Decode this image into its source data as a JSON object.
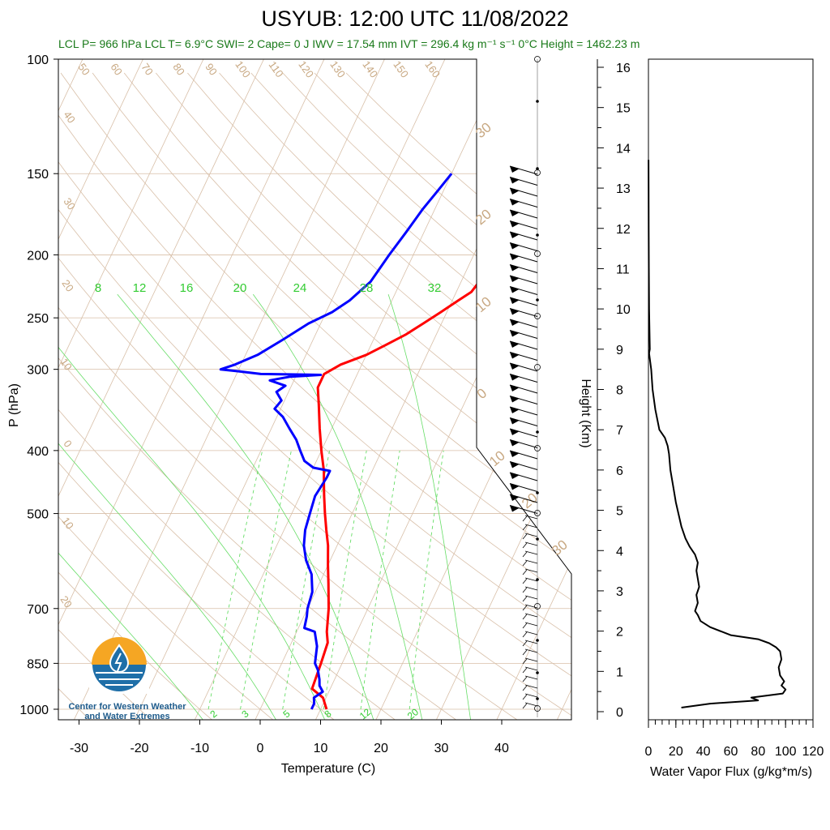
{
  "title": "USYUB: 12:00 UTC 11/08/2022",
  "subtitle": "LCL P= 966 hPa  LCL T= 6.9°C  SWI= 2  Cape= 0 J  IWV = 17.54 mm  IVT = 296.4 kg m⁻¹ s⁻¹  0°C Height = 1462.23 m",
  "logo": {
    "line1": "Center for Western Weather",
    "line2": "and Water Extremes"
  },
  "colors": {
    "temperature": "#ff0000",
    "dewpoint": "#0000ff",
    "isotherm": "#d8bfa8",
    "mixing": "#66dd66",
    "label_tan": "#c8a882",
    "label_green": "#33cc33"
  },
  "chart_data": [
    {
      "type": "line",
      "title": "USYUB: 12:00 UTC 11/08/2022",
      "xlabel": "Temperature (C)",
      "ylabel": "P (hPa)",
      "x_ticks": [
        -30,
        -20,
        -10,
        0,
        10,
        20,
        30,
        40
      ],
      "y_ticks": [
        100,
        150,
        200,
        250,
        300,
        400,
        500,
        700,
        850,
        1000
      ],
      "y_scale": "log",
      "xlim": [
        -33,
        52
      ],
      "ylim": [
        1000,
        100
      ],
      "isotherm_labels": [
        "50",
        "60",
        "70",
        "80",
        "90",
        "100",
        "110",
        "120",
        "130",
        "140",
        "150",
        "160",
        "40",
        "30",
        "20",
        "10",
        "0",
        "10",
        "20"
      ],
      "right_labels": [
        "30",
        "20",
        "10",
        "0",
        "10",
        "20",
        "30"
      ],
      "mixing_labels_top": [
        "8",
        "12",
        "16",
        "20",
        "24",
        "28",
        "32"
      ],
      "mixing_labels_bottom": [
        "2",
        "3",
        "5",
        "8",
        "12",
        "20"
      ],
      "series": [
        {
          "name": "Temperature",
          "color": "#ff0000",
          "points": [
            [
              11,
              1000
            ],
            [
              9.5,
              960
            ],
            [
              7,
              930
            ],
            [
              6.5,
              850
            ],
            [
              6,
              790
            ],
            [
              5,
              760
            ],
            [
              3.5,
              700
            ],
            [
              1.5,
              640
            ],
            [
              0,
              600
            ],
            [
              -1.5,
              560
            ],
            [
              -3,
              530
            ],
            [
              -4.5,
              500
            ],
            [
              -6,
              470
            ],
            [
              -7,
              450
            ],
            [
              -8,
              430
            ],
            [
              -10,
              400
            ],
            [
              -12,
              370
            ],
            [
              -14,
              340
            ],
            [
              -15.5,
              320
            ],
            [
              -15.5,
              305
            ],
            [
              -13.5,
              295
            ],
            [
              -10,
              285
            ],
            [
              -7.5,
              275
            ],
            [
              -5,
              265
            ],
            [
              -3,
              255
            ],
            [
              -1,
              245
            ],
            [
              1,
              235
            ],
            [
              2.5,
              228
            ],
            [
              3,
              220
            ],
            [
              4.5,
              210
            ],
            [
              5,
              200
            ],
            [
              6,
              190
            ],
            [
              7,
              180
            ],
            [
              8,
              170
            ],
            [
              9,
              160
            ],
            [
              10,
              150
            ]
          ]
        },
        {
          "name": "Dewpoint",
          "color": "#0000ff",
          "points": [
            [
              8.5,
              1000
            ],
            [
              8.5,
              980
            ],
            [
              8,
              960
            ],
            [
              9,
              940
            ],
            [
              8,
              920
            ],
            [
              7.5,
              900
            ],
            [
              6.5,
              870
            ],
            [
              5.5,
              850
            ],
            [
              4.5,
              800
            ],
            [
              3,
              760
            ],
            [
              1,
              750
            ],
            [
              0.5,
              720
            ],
            [
              0,
              700
            ],
            [
              -0.5,
              660
            ],
            [
              -2,
              620
            ],
            [
              -4,
              590
            ],
            [
              -5.5,
              560
            ],
            [
              -6.5,
              530
            ],
            [
              -7,
              500
            ],
            [
              -7.5,
              470
            ],
            [
              -7,
              440
            ],
            [
              -7,
              430
            ],
            [
              -10,
              425
            ],
            [
              -12,
              415
            ],
            [
              -13.5,
              400
            ],
            [
              -15,
              385
            ],
            [
              -17,
              370
            ],
            [
              -19,
              355
            ],
            [
              -21,
              345
            ],
            [
              -20.5,
              335
            ],
            [
              -22,
              325
            ],
            [
              -21,
              318
            ],
            [
              -24,
              312
            ],
            [
              -21,
              308
            ],
            [
              -16,
              306
            ],
            [
              -26,
              305
            ],
            [
              -30,
              302
            ],
            [
              -33,
              300
            ],
            [
              -31,
              295
            ],
            [
              -28,
              285
            ],
            [
              -25,
              270
            ],
            [
              -22,
              255
            ],
            [
              -19,
              245
            ],
            [
              -17,
              235
            ],
            [
              -15,
              220
            ],
            [
              -14,
              200
            ],
            [
              -13,
              185
            ],
            [
              -12,
              170
            ],
            [
              -11,
              160
            ],
            [
              -10,
              150
            ]
          ]
        }
      ]
    },
    {
      "type": "line",
      "xlabel": "Water Vapor Flux (g/kg*m/s)",
      "ylabel": "Height (Km)",
      "x_ticks": [
        0,
        20,
        40,
        60,
        80,
        100,
        120
      ],
      "y_ticks": [
        0,
        1,
        2,
        3,
        4,
        5,
        6,
        7,
        8,
        9,
        10,
        11,
        12,
        13,
        14,
        15,
        16
      ],
      "xlim": [
        0,
        120
      ],
      "ylim": [
        0,
        16.3
      ],
      "series": [
        {
          "name": "",
          "color": "#000000",
          "points": [
            [
              24,
              0.1
            ],
            [
              45,
              0.2
            ],
            [
              80,
              0.28
            ],
            [
              75,
              0.35
            ],
            [
              98,
              0.45
            ],
            [
              100,
              0.55
            ],
            [
              97,
              0.65
            ],
            [
              99,
              0.75
            ],
            [
              96,
              0.9
            ],
            [
              95,
              1.1
            ],
            [
              97,
              1.3
            ],
            [
              96,
              1.5
            ],
            [
              93,
              1.6
            ],
            [
              88,
              1.7
            ],
            [
              80,
              1.8
            ],
            [
              60,
              1.9
            ],
            [
              45,
              2.1
            ],
            [
              38,
              2.25
            ],
            [
              36,
              2.4
            ],
            [
              34,
              2.5
            ],
            [
              36,
              2.7
            ],
            [
              35,
              2.9
            ],
            [
              37,
              3.1
            ],
            [
              36,
              3.3
            ],
            [
              35,
              3.5
            ],
            [
              36,
              3.7
            ],
            [
              34,
              3.9
            ],
            [
              30,
              4.1
            ],
            [
              27,
              4.3
            ],
            [
              24,
              4.6
            ],
            [
              22,
              4.9
            ],
            [
              20,
              5.2
            ],
            [
              18,
              5.6
            ],
            [
              16,
              6.0
            ],
            [
              15,
              6.4
            ],
            [
              14,
              6.6
            ],
            [
              12,
              6.8
            ],
            [
              8,
              7.0
            ],
            [
              5,
              7.5
            ],
            [
              3,
              8.0
            ],
            [
              2,
              8.5
            ],
            [
              0.5,
              8.9
            ],
            [
              1,
              9.0
            ],
            [
              0.5,
              10
            ],
            [
              0.3,
              11
            ],
            [
              0.2,
              12
            ],
            [
              0.1,
              13
            ],
            [
              0.05,
              13.7
            ]
          ]
        }
      ]
    }
  ]
}
